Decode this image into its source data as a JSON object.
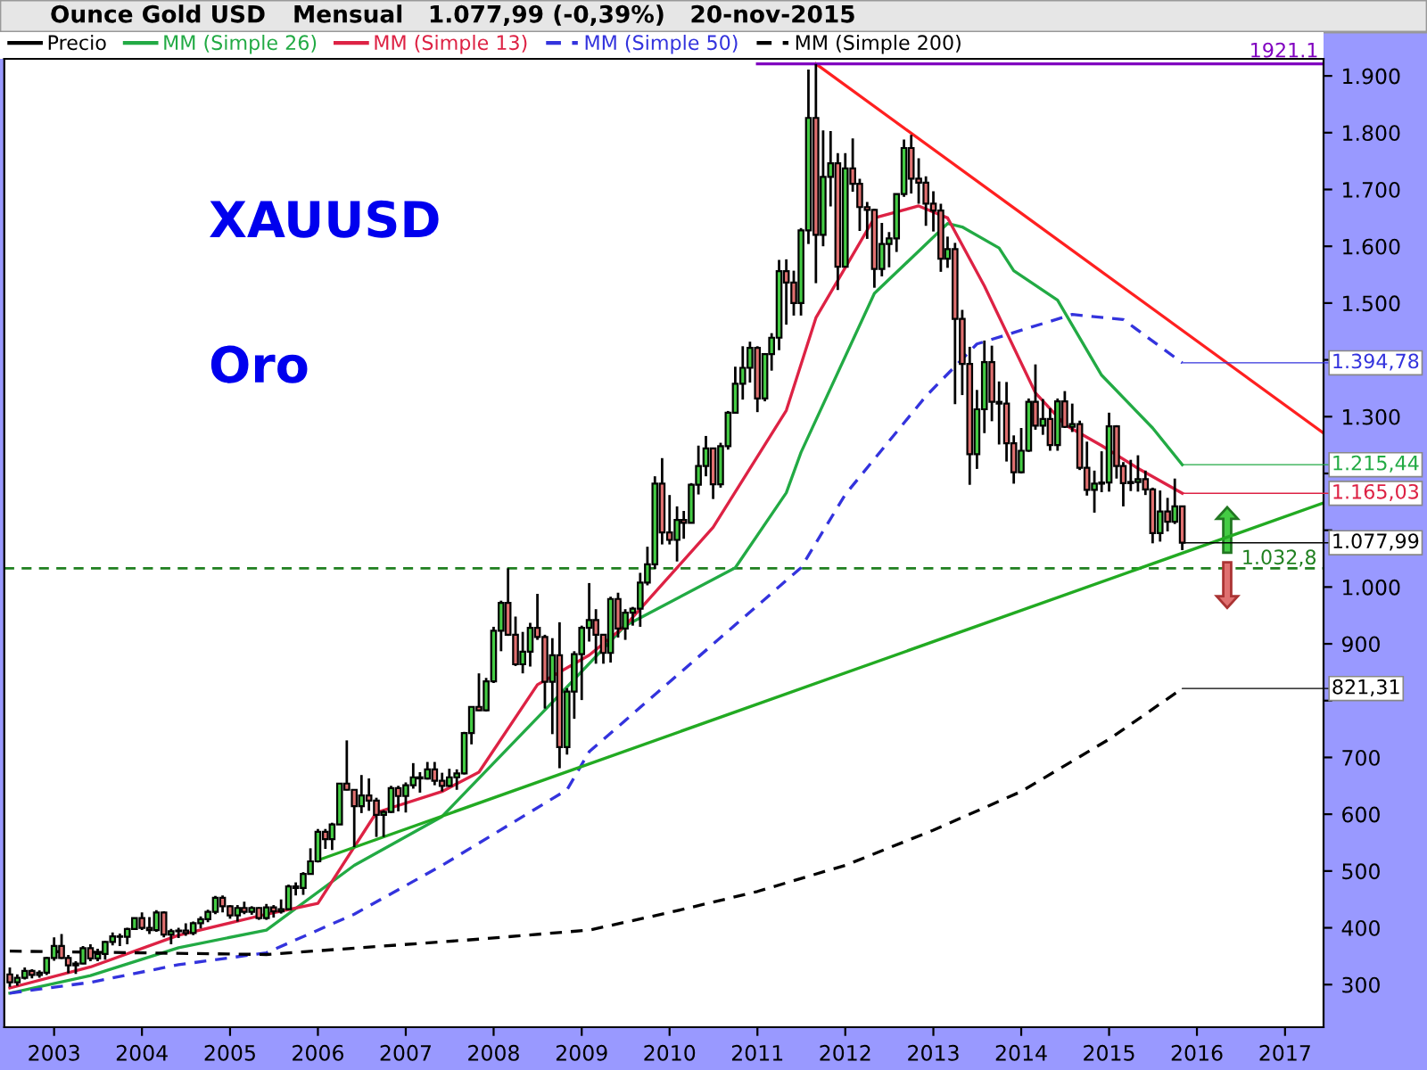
{
  "chart_data": {
    "type": "candlestick",
    "title": "Ounce Gold USD",
    "subtitle": "Mensual   1.077,99 (-0,39%)   20-nov-2015",
    "xlim": [
      "2002-06-08",
      "2017-06-10"
    ],
    "xticks": [
      "2003",
      "2004",
      "2005",
      "2006",
      "2007",
      "2008",
      "2009",
      "2010",
      "2011",
      "2012",
      "2013",
      "2014",
      "2015",
      "2016",
      "2017"
    ],
    "ylim": [
      225,
      1930
    ],
    "yticks": [
      300,
      400,
      500,
      600,
      700,
      {
        "value": 800,
        "label": null
      },
      900,
      {
        "value": 1000,
        "label": "1.000"
      },
      {
        "value": 1100,
        "label": null
      },
      {
        "value": 1200,
        "label": null
      },
      {
        "value": 1300,
        "label": "1.300"
      },
      {
        "value": 1400,
        "label": null
      },
      {
        "value": 1500,
        "label": "1.500"
      },
      {
        "value": 1600,
        "label": "1.600"
      },
      {
        "value": 1700,
        "label": "1.700"
      },
      {
        "value": 1800,
        "label": "1.800"
      },
      {
        "value": 1900,
        "label": "1.900"
      }
    ],
    "legend": "top left",
    "ref_lines": [
      {
        "axis": "y",
        "value": 1032.8,
        "label": "1.032,8",
        "color": "#208020",
        "line_style": "dashed"
      }
    ],
    "annotations": [
      "XAUUSD",
      "Oro",
      {
        "text": "1921.1",
        "x": "2017-06-10",
        "y": 1921.1
      },
      {
        "text": "1.394,78",
        "x": "2015-11",
        "y": 1394.78
      },
      {
        "text": "1.215,44",
        "x": "2015-11",
        "y": 1215.44
      },
      {
        "text": "1.165,03",
        "x": "2015-11",
        "y": 1165.03
      },
      {
        "text": "1.077,99",
        "x": "2015-11",
        "y": 1077.99
      },
      {
        "text": "821,31",
        "x": "2015-11",
        "y": 821.31
      }
    ],
    "series": [
      {
        "name": "Precio",
        "color": "#000000",
        "x": [
          "2002-07",
          "2002-08",
          "2002-09",
          "2002-10",
          "2002-11",
          "2002-12",
          "2003-01",
          "2003-02",
          "2003-03",
          "2003-04",
          "2003-05",
          "2003-06",
          "2003-07",
          "2003-08",
          "2003-09",
          "2003-10",
          "2003-11",
          "2003-12",
          "2004-01",
          "2004-02",
          "2004-03",
          "2004-04",
          "2004-05",
          "2004-06",
          "2004-07",
          "2004-08",
          "2004-09",
          "2004-10",
          "2004-11",
          "2004-12",
          "2005-01",
          "2005-02",
          "2005-03",
          "2005-04",
          "2005-05",
          "2005-06",
          "2005-07",
          "2005-08",
          "2005-09",
          "2005-10",
          "2005-11",
          "2005-12",
          "2006-01",
          "2006-02",
          "2006-03",
          "2006-04",
          "2006-05",
          "2006-06",
          "2006-07",
          "2006-08",
          "2006-09",
          "2006-10",
          "2006-11",
          "2006-12",
          "2007-01",
          "2007-02",
          "2007-03",
          "2007-04",
          "2007-05",
          "2007-06",
          "2007-07",
          "2007-08",
          "2007-09",
          "2007-10",
          "2007-11",
          "2007-12",
          "2008-01",
          "2008-02",
          "2008-03",
          "2008-04",
          "2008-05",
          "2008-06",
          "2008-07",
          "2008-08",
          "2008-09",
          "2008-10",
          "2008-11",
          "2008-12",
          "2009-01",
          "2009-02",
          "2009-03",
          "2009-04",
          "2009-05",
          "2009-06",
          "2009-07",
          "2009-08",
          "2009-09",
          "2009-10",
          "2009-11",
          "2009-12",
          "2010-01",
          "2010-02",
          "2010-03",
          "2010-04",
          "2010-05",
          "2010-06",
          "2010-07",
          "2010-08",
          "2010-09",
          "2010-10",
          "2010-11",
          "2010-12",
          "2011-01",
          "2011-02",
          "2011-03",
          "2011-04",
          "2011-05",
          "2011-06",
          "2011-07",
          "2011-08",
          "2011-09",
          "2011-10",
          "2011-11",
          "2011-12",
          "2012-01",
          "2012-02",
          "2012-03",
          "2012-04",
          "2012-05",
          "2012-06",
          "2012-07",
          "2012-08",
          "2012-09",
          "2012-10",
          "2012-11",
          "2012-12",
          "2013-01",
          "2013-02",
          "2013-03",
          "2013-04",
          "2013-05",
          "2013-06",
          "2013-07",
          "2013-08",
          "2013-09",
          "2013-10",
          "2013-11",
          "2013-12",
          "2014-01",
          "2014-02",
          "2014-03",
          "2014-04",
          "2014-05",
          "2014-06",
          "2014-07",
          "2014-08",
          "2014-09",
          "2014-10",
          "2014-11",
          "2014-12",
          "2015-01",
          "2015-02",
          "2015-03",
          "2015-04",
          "2015-05",
          "2015-06",
          "2015-07",
          "2015-08",
          "2015-09",
          "2015-10",
          "2015-11"
        ],
        "ohlc": [
          [
            318,
            330,
            296,
            304
          ],
          [
            304,
            318,
            298,
            312
          ],
          [
            312,
            330,
            309,
            324
          ],
          [
            324,
            327,
            311,
            317
          ],
          [
            317,
            325,
            312,
            321
          ],
          [
            321,
            349,
            317,
            347
          ],
          [
            347,
            383,
            342,
            368
          ],
          [
            368,
            389,
            345,
            347
          ],
          [
            347,
            352,
            320,
            334
          ],
          [
            334,
            341,
            319,
            337
          ],
          [
            337,
            368,
            336,
            364
          ],
          [
            364,
            371,
            341,
            346
          ],
          [
            346,
            363,
            341,
            354
          ],
          [
            354,
            377,
            344,
            375
          ],
          [
            375,
            392,
            369,
            385
          ],
          [
            385,
            390,
            368,
            384
          ],
          [
            384,
            400,
            371,
            398
          ],
          [
            398,
            418,
            396,
            417
          ],
          [
            417,
            427,
            396,
            400
          ],
          [
            400,
            419,
            389,
            396
          ],
          [
            396,
            431,
            393,
            427
          ],
          [
            427,
            429,
            383,
            388
          ],
          [
            388,
            398,
            371,
            394
          ],
          [
            394,
            400,
            382,
            395
          ],
          [
            395,
            408,
            386,
            391
          ],
          [
            391,
            411,
            387,
            408
          ],
          [
            408,
            420,
            399,
            415
          ],
          [
            415,
            432,
            410,
            428
          ],
          [
            428,
            456,
            424,
            453
          ],
          [
            453,
            457,
            427,
            438
          ],
          [
            438,
            440,
            416,
            422
          ],
          [
            422,
            440,
            411,
            435
          ],
          [
            435,
            446,
            424,
            428
          ],
          [
            428,
            438,
            423,
            435
          ],
          [
            435,
            436,
            414,
            417
          ],
          [
            417,
            442,
            414,
            436
          ],
          [
            436,
            440,
            418,
            429
          ],
          [
            429,
            450,
            425,
            433
          ],
          [
            433,
            476,
            432,
            473
          ],
          [
            473,
            480,
            457,
            470
          ],
          [
            470,
            498,
            458,
            495
          ],
          [
            495,
            540,
            494,
            517
          ],
          [
            517,
            574,
            515,
            569
          ],
          [
            569,
            574,
            539,
            556
          ],
          [
            556,
            585,
            537,
            582
          ],
          [
            582,
            654,
            582,
            654
          ],
          [
            654,
            730,
            642,
            643
          ],
          [
            643,
            643,
            542,
            614
          ],
          [
            614,
            669,
            602,
            633
          ],
          [
            633,
            663,
            606,
            624
          ],
          [
            624,
            629,
            560,
            599
          ],
          [
            599,
            607,
            560,
            604
          ],
          [
            604,
            650,
            602,
            646
          ],
          [
            646,
            650,
            605,
            632
          ],
          [
            632,
            656,
            603,
            651
          ],
          [
            651,
            690,
            645,
            665
          ],
          [
            665,
            674,
            638,
            663
          ],
          [
            663,
            692,
            661,
            679
          ],
          [
            679,
            692,
            651,
            659
          ],
          [
            659,
            673,
            640,
            650
          ],
          [
            650,
            680,
            648,
            665
          ],
          [
            665,
            679,
            643,
            672
          ],
          [
            672,
            745,
            670,
            743
          ],
          [
            743,
            790,
            723,
            789
          ],
          [
            789,
            848,
            782,
            783
          ],
          [
            783,
            840,
            781,
            834
          ],
          [
            834,
            930,
            831,
            923
          ],
          [
            923,
            976,
            887,
            972
          ],
          [
            972,
            1033,
            914,
            916
          ],
          [
            916,
            948,
            861,
            864
          ],
          [
            864,
            921,
            848,
            886
          ],
          [
            886,
            937,
            860,
            928
          ],
          [
            928,
            988,
            907,
            912
          ],
          [
            912,
            916,
            786,
            833
          ],
          [
            833,
            910,
            741,
            880
          ],
          [
            880,
            938,
            681,
            718
          ],
          [
            718,
            822,
            705,
            816
          ],
          [
            816,
            887,
            768,
            882
          ],
          [
            882,
            932,
            801,
            928
          ],
          [
            928,
            1007,
            904,
            942
          ],
          [
            942,
            961,
            865,
            916
          ],
          [
            916,
            916,
            865,
            884
          ],
          [
            884,
            983,
            867,
            979
          ],
          [
            979,
            990,
            911,
            927
          ],
          [
            927,
            961,
            907,
            955
          ],
          [
            955,
            965,
            932,
            962
          ],
          [
            962,
            1025,
            930,
            1008
          ],
          [
            1008,
            1071,
            1003,
            1040
          ],
          [
            1040,
            1195,
            1032,
            1182
          ],
          [
            1182,
            1227,
            1075,
            1096
          ],
          [
            1096,
            1162,
            1075,
            1083
          ],
          [
            1083,
            1142,
            1045,
            1118
          ],
          [
            1118,
            1134,
            1085,
            1113
          ],
          [
            1113,
            1183,
            1112,
            1180
          ],
          [
            1180,
            1249,
            1163,
            1213
          ],
          [
            1213,
            1266,
            1195,
            1244
          ],
          [
            1244,
            1245,
            1155,
            1181
          ],
          [
            1181,
            1254,
            1175,
            1248
          ],
          [
            1248,
            1310,
            1242,
            1307
          ],
          [
            1307,
            1388,
            1306,
            1358
          ],
          [
            1358,
            1424,
            1330,
            1386
          ],
          [
            1386,
            1432,
            1360,
            1421
          ],
          [
            1421,
            1424,
            1308,
            1332
          ],
          [
            1332,
            1412,
            1327,
            1410
          ],
          [
            1410,
            1447,
            1381,
            1439
          ],
          [
            1439,
            1576,
            1417,
            1556
          ],
          [
            1556,
            1577,
            1462,
            1536
          ],
          [
            1536,
            1557,
            1478,
            1500
          ],
          [
            1500,
            1632,
            1478,
            1628
          ],
          [
            1628,
            1911,
            1604,
            1826
          ],
          [
            1826,
            1921.1,
            1535,
            1620
          ],
          [
            1620,
            1804,
            1600,
            1722
          ],
          [
            1722,
            1803,
            1670,
            1746
          ],
          [
            1746,
            1764,
            1523,
            1564
          ],
          [
            1564,
            1764,
            1564,
            1737
          ],
          [
            1737,
            1790,
            1696,
            1710
          ],
          [
            1710,
            1719,
            1627,
            1669
          ],
          [
            1669,
            1678,
            1613,
            1664
          ],
          [
            1664,
            1666,
            1527,
            1560
          ],
          [
            1560,
            1641,
            1547,
            1604
          ],
          [
            1604,
            1625,
            1563,
            1614
          ],
          [
            1614,
            1692,
            1590,
            1692
          ],
          [
            1692,
            1788,
            1687,
            1773
          ],
          [
            1773,
            1796,
            1693,
            1719
          ],
          [
            1719,
            1755,
            1675,
            1712
          ],
          [
            1712,
            1723,
            1636,
            1675
          ],
          [
            1675,
            1697,
            1626,
            1663
          ],
          [
            1663,
            1675,
            1555,
            1578
          ],
          [
            1578,
            1617,
            1562,
            1595
          ],
          [
            1595,
            1606,
            1322,
            1472
          ],
          [
            1472,
            1488,
            1338,
            1393
          ],
          [
            1393,
            1423,
            1180,
            1234
          ],
          [
            1234,
            1347,
            1208,
            1313
          ],
          [
            1313,
            1434,
            1271,
            1396
          ],
          [
            1396,
            1425,
            1292,
            1326
          ],
          [
            1326,
            1362,
            1251,
            1323
          ],
          [
            1323,
            1361,
            1221,
            1253
          ],
          [
            1253,
            1267,
            1182,
            1202
          ],
          [
            1202,
            1280,
            1200,
            1240
          ],
          [
            1240,
            1332,
            1238,
            1326
          ],
          [
            1326,
            1392,
            1277,
            1284
          ],
          [
            1284,
            1331,
            1268,
            1296
          ],
          [
            1296,
            1315,
            1240,
            1250
          ],
          [
            1250,
            1332,
            1240,
            1327
          ],
          [
            1327,
            1345,
            1280,
            1282
          ],
          [
            1282,
            1323,
            1273,
            1287
          ],
          [
            1287,
            1293,
            1206,
            1210
          ],
          [
            1210,
            1256,
            1161,
            1171
          ],
          [
            1171,
            1205,
            1131,
            1182
          ],
          [
            1182,
            1239,
            1167,
            1184
          ],
          [
            1184,
            1307,
            1168,
            1283
          ],
          [
            1283,
            1285,
            1191,
            1213
          ],
          [
            1213,
            1220,
            1142,
            1183
          ],
          [
            1183,
            1224,
            1169,
            1185
          ],
          [
            1185,
            1232,
            1168,
            1190
          ],
          [
            1190,
            1205,
            1162,
            1172
          ],
          [
            1172,
            1175,
            1077,
            1095
          ],
          [
            1095,
            1170,
            1080,
            1133
          ],
          [
            1133,
            1157,
            1098,
            1115
          ],
          [
            1115,
            1191,
            1111,
            1142
          ],
          [
            1142,
            1142,
            1065,
            1077.99
          ]
        ],
        "colors": [
          "#e07070",
          "#44cc44",
          "#44cc44",
          "#e07070",
          "#44cc44",
          "#44cc44",
          "#44cc44",
          "#e07070",
          "#e07070",
          "#44cc44",
          "#44cc44",
          "#e07070",
          "#44cc44",
          "#44cc44",
          "#44cc44",
          "#e07070",
          "#44cc44",
          "#44cc44",
          "#e07070",
          "#e07070",
          "#44cc44",
          "#e07070",
          "#44cc44",
          "#44cc44",
          "#e07070",
          "#44cc44",
          "#44cc44",
          "#44cc44",
          "#44cc44",
          "#e07070",
          "#e07070",
          "#44cc44",
          "#e07070",
          "#44cc44",
          "#e07070",
          "#44cc44",
          "#e07070",
          "#44cc44",
          "#44cc44",
          "#e07070",
          "#44cc44",
          "#44cc44",
          "#44cc44",
          "#e07070",
          "#44cc44",
          "#44cc44",
          "#e07070",
          "#e07070",
          "#44cc44",
          "#e07070",
          "#e07070",
          "#44cc44",
          "#44cc44",
          "#e07070",
          "#44cc44",
          "#44cc44",
          "#e07070",
          "#44cc44",
          "#e07070",
          "#e07070",
          "#44cc44",
          "#44cc44",
          "#44cc44",
          "#44cc44",
          "#e07070",
          "#44cc44",
          "#44cc44",
          "#44cc44",
          "#e07070",
          "#e07070",
          "#44cc44",
          "#44cc44",
          "#e07070",
          "#e07070",
          "#44cc44",
          "#e07070",
          "#44cc44",
          "#44cc44",
          "#44cc44",
          "#44cc44",
          "#e07070",
          "#e07070",
          "#44cc44",
          "#e07070",
          "#44cc44",
          "#44cc44",
          "#44cc44",
          "#44cc44",
          "#44cc44",
          "#e07070",
          "#e07070",
          "#44cc44",
          "#e07070",
          "#44cc44",
          "#44cc44",
          "#44cc44",
          "#e07070",
          "#44cc44",
          "#44cc44",
          "#44cc44",
          "#44cc44",
          "#44cc44",
          "#e07070",
          "#44cc44",
          "#44cc44",
          "#44cc44",
          "#e07070",
          "#e07070",
          "#44cc44",
          "#44cc44",
          "#e07070",
          "#44cc44",
          "#44cc44",
          "#e07070",
          "#44cc44",
          "#e07070",
          "#e07070",
          "#e07070",
          "#e07070",
          "#44cc44",
          "#44cc44",
          "#44cc44",
          "#44cc44",
          "#e07070",
          "#e07070",
          "#e07070",
          "#e07070",
          "#e07070",
          "#44cc44",
          "#e07070",
          "#e07070",
          "#e07070",
          "#44cc44",
          "#44cc44",
          "#e07070",
          "#e07070",
          "#e07070",
          "#e07070",
          "#44cc44",
          "#44cc44",
          "#e07070",
          "#44cc44",
          "#e07070",
          "#44cc44",
          "#e07070",
          "#44cc44",
          "#e07070",
          "#e07070",
          "#44cc44",
          "#44cc44",
          "#44cc44",
          "#e07070",
          "#e07070",
          "#44cc44",
          "#44cc44",
          "#e07070",
          "#e07070",
          "#44cc44",
          "#e07070",
          "#44cc44",
          "#e07070"
        ]
      },
      {
        "name": "MM (Simple 26)",
        "type": "line",
        "color": "#22aa44",
        "x": [
          "2002-07",
          "2003-06",
          "2004-06",
          "2005-06",
          "2006-06",
          "2007-06",
          "2008-09",
          "2009-07",
          "2010-10",
          "2011-05",
          "2011-07",
          "2012-05",
          "2013-03",
          "2013-05",
          "2013-10",
          "2013-12",
          "2014-06",
          "2014-12",
          "2015-07",
          "2015-11"
        ],
        "values": [
          285,
          316,
          365,
          396,
          510,
          596,
          797,
          932,
          1034,
          1166,
          1237,
          1517,
          1640,
          1634,
          1597,
          1557,
          1505,
          1373,
          1280,
          1215.44
        ]
      },
      {
        "name": "MM (Simple 13)",
        "type": "line",
        "color": "#dd2244",
        "x": [
          "2002-07",
          "2003-06",
          "2004-06",
          "2005-06",
          "2006-01",
          "2006-09",
          "2007-06",
          "2007-11",
          "2008-07",
          "2009-02",
          "2009-07",
          "2010-07",
          "2011-05",
          "2011-09",
          "2012-05",
          "2012-11",
          "2013-03",
          "2013-08",
          "2014-03",
          "2014-07",
          "2014-12",
          "2015-05",
          "2015-11"
        ],
        "values": [
          294,
          331,
          387,
          424,
          443,
          603,
          640,
          674,
          828,
          880,
          932,
          1105,
          1311,
          1474,
          1650,
          1671,
          1650,
          1530,
          1342,
          1286,
          1249,
          1209,
          1165.03
        ]
      },
      {
        "name": "MM (Simple 50)",
        "type": "line",
        "color": "#3333dd",
        "line_style": "dashed",
        "x": [
          "2002-07",
          "2003-06",
          "2004-06",
          "2005-06",
          "2006-06",
          "2007-06",
          "2008-11",
          "2009-02",
          "2011-07",
          "2012-01",
          "2012-12",
          "2013-07",
          "2014-08",
          "2015-03",
          "2015-11"
        ],
        "values": [
          285,
          304,
          335,
          356,
          424,
          510,
          643,
          710,
          1034,
          1163,
          1336,
          1428,
          1480,
          1471,
          1394.78
        ]
      },
      {
        "name": "MM (Simple 200)",
        "type": "line",
        "color": "#000000",
        "line_style": "dashed",
        "x": [
          "2002-07",
          "2005-06",
          "2007-11",
          "2009-02",
          "2010-01",
          "2011-01",
          "2012-01",
          "2013-01",
          "2014-01",
          "2015-01",
          "2015-11"
        ],
        "values": [
          359,
          353,
          380,
          396,
          427,
          464,
          510,
          572,
          640,
          732,
          821.31
        ]
      },
      {
        "type": "line",
        "color": "#ff2020",
        "x": [
          "2011-09",
          "2017-06-10"
        ],
        "values": [
          1921.1,
          1271
        ]
      },
      {
        "type": "line",
        "color": "#22aa22",
        "x": [
          "2006-01",
          "2017-06-10"
        ],
        "values": [
          519,
          1148
        ]
      },
      {
        "type": "line",
        "color": "#8000c0",
        "x": [
          "2011-01",
          "2017-06-10"
        ],
        "values": [
          1921.1,
          1921.1
        ]
      }
    ]
  }
}
